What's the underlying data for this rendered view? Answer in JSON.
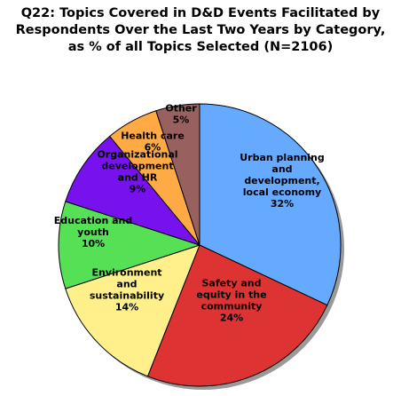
{
  "title_lines": [
    "Q22: Topics Covered in D&D Events Facilitated by",
    "Respondents Over the Last Two Years by Category,",
    "as % of all Topics Selected (N=2106)"
  ],
  "chart_data": {
    "type": "pie",
    "unit": "%",
    "slices": [
      {
        "label_lines": [
          "Urban planning",
          "and",
          "development,",
          "local economy"
        ],
        "value": 32,
        "color": "#66AAFF"
      },
      {
        "label_lines": [
          "Safety and",
          "equity in the",
          "community"
        ],
        "value": 24,
        "color": "#DD3333"
      },
      {
        "label_lines": [
          "Environment",
          "and",
          "sustainability"
        ],
        "value": 14,
        "color": "#FFF08C"
      },
      {
        "label_lines": [
          "Education and",
          "youth"
        ],
        "value": 10,
        "color": "#55E055"
      },
      {
        "label_lines": [
          "Organizational",
          "development",
          "and HR"
        ],
        "value": 9,
        "color": "#7711EE"
      },
      {
        "label_lines": [
          "Health care"
        ],
        "value": 6,
        "color": "#FFAA44"
      },
      {
        "label_lines": [
          "Other"
        ],
        "value": 5,
        "color": "#996060"
      }
    ]
  }
}
